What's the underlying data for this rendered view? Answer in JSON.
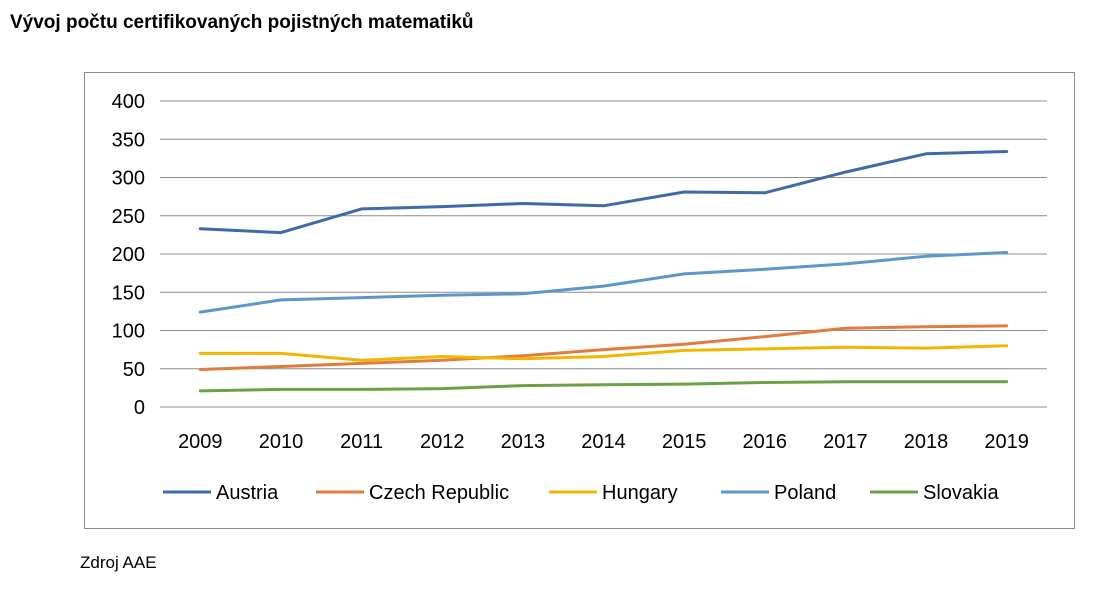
{
  "title": "Vývoj počtu certifikovaných pojistných matematiků",
  "source": "Zdroj AAE",
  "chart_data": {
    "type": "line",
    "title": "",
    "xlabel": "",
    "ylabel": "",
    "ylim": [
      0,
      400
    ],
    "yticks": [
      0,
      50,
      100,
      150,
      200,
      250,
      300,
      350,
      400
    ],
    "grid": true,
    "legend_position": "bottom",
    "categories": [
      "2009",
      "2010",
      "2011",
      "2012",
      "2013",
      "2014",
      "2015",
      "2016",
      "2017",
      "2018",
      "2019"
    ],
    "series": [
      {
        "name": "Austria",
        "color": "#4169aa",
        "values": [
          233,
          228,
          259,
          262,
          266,
          263,
          281,
          280,
          307,
          331,
          334
        ]
      },
      {
        "name": "Czech Republic",
        "color": "#e07c3e",
        "values": [
          49,
          53,
          57,
          61,
          67,
          75,
          82,
          92,
          103,
          105,
          106
        ]
      },
      {
        "name": "Hungary",
        "color": "#f2b600",
        "values": [
          70,
          70,
          61,
          66,
          63,
          66,
          74,
          76,
          78,
          77,
          80
        ]
      },
      {
        "name": "Poland",
        "color": "#5b97cb",
        "values": [
          124,
          140,
          143,
          146,
          148,
          158,
          174,
          180,
          187,
          197,
          202
        ]
      },
      {
        "name": "Slovakia",
        "color": "#6aa145",
        "values": [
          21,
          23,
          23,
          24,
          28,
          29,
          30,
          32,
          33,
          33,
          33
        ]
      }
    ]
  }
}
